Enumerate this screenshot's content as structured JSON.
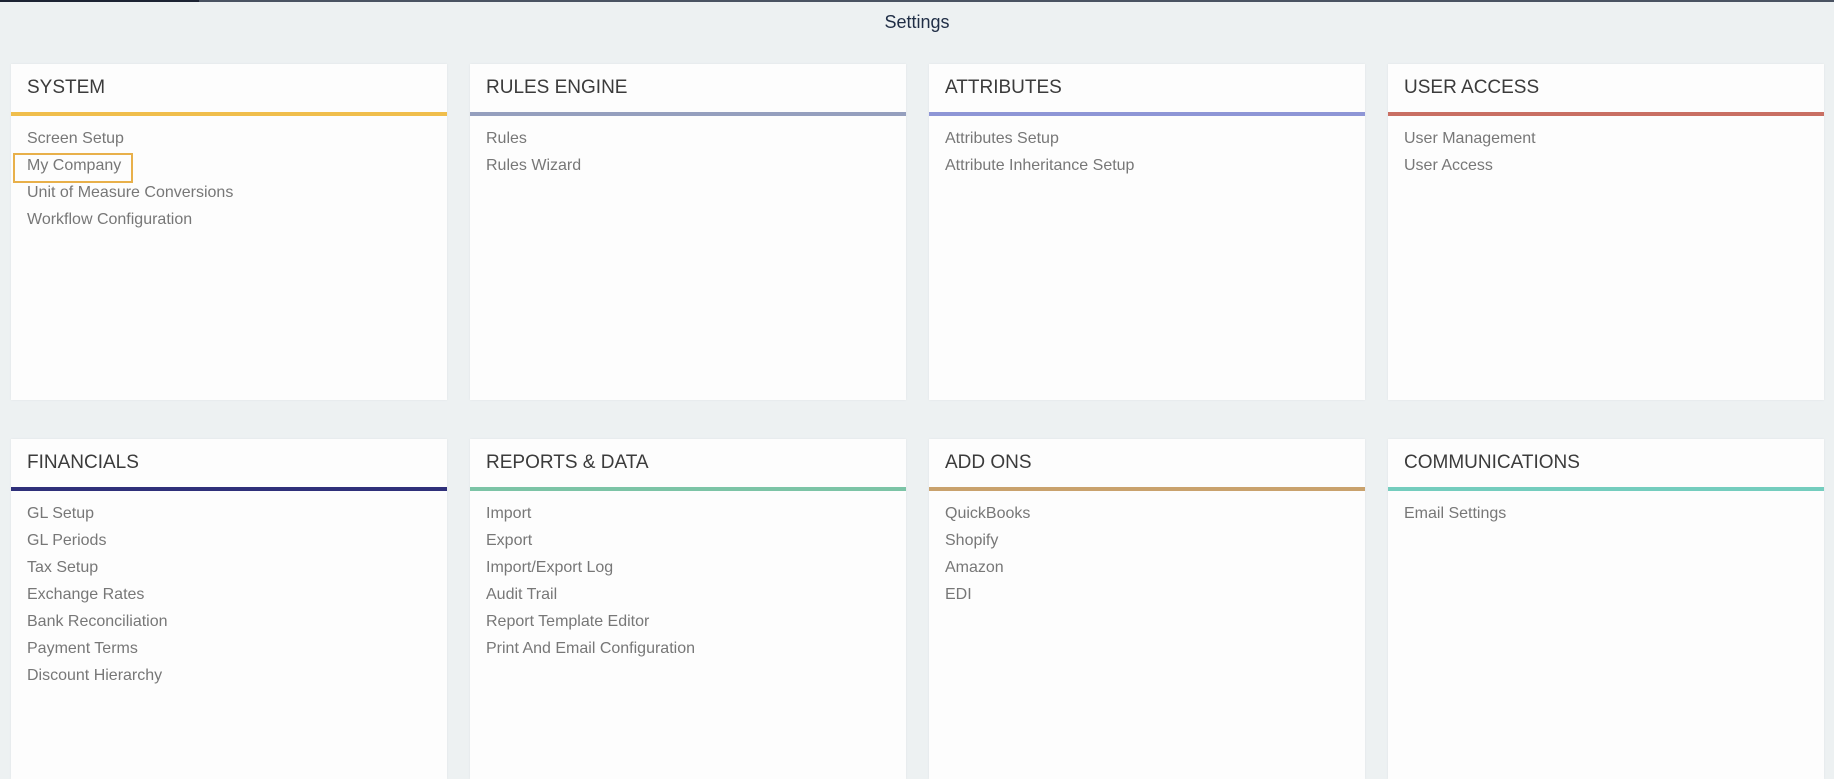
{
  "page_title": "Settings",
  "highlighted_item": "My Company",
  "sections": [
    {
      "title": "SYSTEM",
      "color": "#f0be4c",
      "items": [
        "Screen Setup",
        "My Company",
        "Unit of Measure Conversions",
        "Workflow Configuration"
      ]
    },
    {
      "title": "RULES ENGINE",
      "color": "#959fbe",
      "items": [
        "Rules",
        "Rules Wizard"
      ]
    },
    {
      "title": "ATTRIBUTES",
      "color": "#8e96d6",
      "items": [
        "Attributes Setup",
        "Attribute Inheritance Setup"
      ]
    },
    {
      "title": "USER ACCESS",
      "color": "#c96f63",
      "items": [
        "User Management",
        "User Access"
      ]
    },
    {
      "title": "FINANCIALS",
      "color": "#2f307a",
      "items": [
        "GL Setup",
        "GL Periods",
        "Tax Setup",
        "Exchange Rates",
        "Bank Reconciliation",
        "Payment Terms",
        "Discount Hierarchy"
      ]
    },
    {
      "title": "REPORTS & DATA",
      "color": "#7cc4a6",
      "items": [
        "Import",
        "Export",
        "Import/Export Log",
        "Audit Trail",
        "Report Template Editor",
        "Print And Email Configuration"
      ]
    },
    {
      "title": "ADD ONS",
      "color": "#c9a26d",
      "items": [
        "QuickBooks",
        "Shopify",
        "Amazon",
        "EDI"
      ]
    },
    {
      "title": "COMMUNICATIONS",
      "color": "#74cdbe",
      "items": [
        "Email Settings"
      ]
    }
  ]
}
